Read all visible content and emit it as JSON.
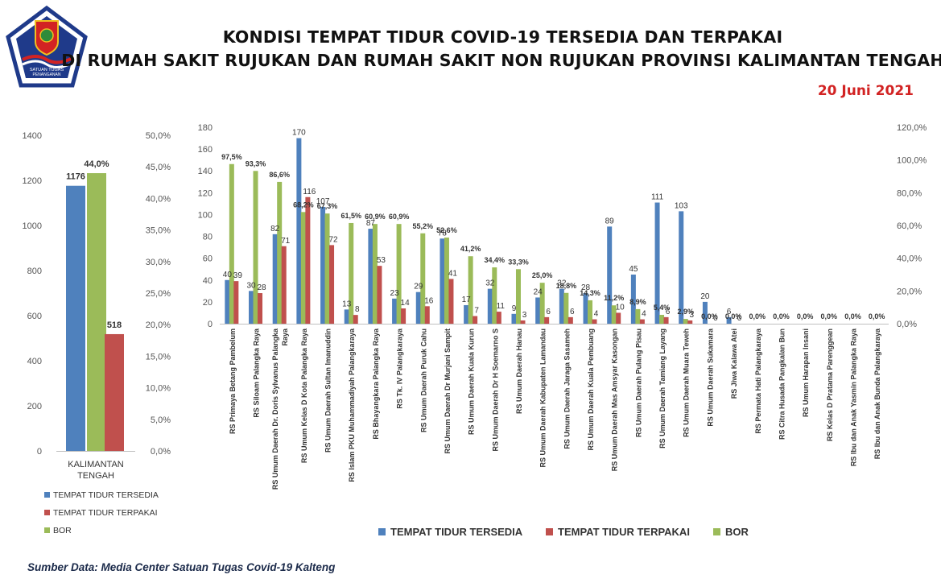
{
  "header": {
    "title_line1": "KONDISI TEMPAT TIDUR COVID-19 TERSEDIA DAN TERPAKAI",
    "title_line2": "DI RUMAH SAKIT RUJUKAN DAN RUMAH SAKIT NON RUJUKAN PROVINSI KALIMANTAN TENGAH",
    "date": "20 Juni 2021"
  },
  "logo": {
    "text_line1": "SATUAN TUGAS",
    "text_line2": "PENANGANAN",
    "text_line3": "COVID-19",
    "colors": {
      "navy": "#1f3a8a",
      "red": "#d22323"
    }
  },
  "footer": {
    "source": "Sumber Data: Media Center Satuan Tugas Covid-19 Kalteng"
  },
  "colors": {
    "tersedia": "#4f81bd",
    "terpakai": "#c0504d",
    "bor": "#9bbb59"
  },
  "chart_data": [
    {
      "type": "bar",
      "categories": [
        "KALIMANTAN TENGAH"
      ],
      "series": [
        {
          "name": "TEMPAT TIDUR TERSEDIA",
          "values": [
            1176
          ],
          "labels": [
            "1176"
          ],
          "axis": "left"
        },
        {
          "name": "BOR",
          "values": [
            44.0
          ],
          "labels": [
            "44,0%"
          ],
          "axis": "right"
        },
        {
          "name": "TEMPAT TIDUR TERPAKAI",
          "values": [
            518
          ],
          "labels": [
            "518"
          ],
          "axis": "left"
        }
      ],
      "y_left": {
        "min": 0,
        "max": 1400,
        "ticks": [
          "0",
          "200",
          "400",
          "600",
          "800",
          "1000",
          "1200",
          "1400"
        ]
      },
      "y_right": {
        "min": 0,
        "max": 50,
        "ticks": [
          "0,0%",
          "5,0%",
          "10,0%",
          "15,0%",
          "20,0%",
          "25,0%",
          "30,0%",
          "35,0%",
          "40,0%",
          "45,0%",
          "50,0%"
        ]
      },
      "legend_position": "bottom"
    },
    {
      "type": "bar",
      "categories": [
        "RS Primaya Betang Pambelum",
        "RS Siloam Palangka Raya",
        "RS Umum Daerah Dr. Doris Sylvanus Palangka Raya",
        "RS Umum Kelas D Kota Palangka Raya",
        "RS Umum Daerah Sultan Imanuddin",
        "RS Islam PKU Muhammadiyah Palangkaraya",
        "RS Bhayangkara Palangka Raya",
        "RS Tk. IV Palangkaraya",
        "RS Umum Daerah Puruk Cahu",
        "RS Umum Daerah Dr Murjani Sampit",
        "RS Umum Daerah Kuala Kurun",
        "RS Umum Daerah Dr H Soemarno S",
        "RS Umum Daerah Hanau",
        "RS Umum Daerah Kabupaten Lamandau",
        "RS Umum Daerah Jaraga Sasameh",
        "RS Umum Daerah Kuala Pembuang",
        "RS Umum Daerah  Mas Amsyar Kasongan",
        "RS Umum Daerah Pulang Pisau",
        "RS Umum Daerah Tamiang Layang",
        "RS Umum Daerah Muara Teweh",
        "RS Umum Daerah Sukamara",
        "RS Jiwa Kalawa Atei",
        "RS Permata Hati Palangkaraya",
        "RS Citra Husada Pangkalan Bun",
        "RS Umum Harapan Insani",
        "RS Kelas D Pratama Parenggean",
        "RS Ibu dan Anak Yasmin Palangka Raya",
        "RS Ibu dan Anak Bunda Palangkaraya"
      ],
      "series": [
        {
          "name": "TEMPAT TIDUR TERSEDIA",
          "axis": "left",
          "values": [
            40,
            30,
            82,
            170,
            107,
            13,
            87,
            23,
            29,
            78,
            17,
            32,
            9,
            24,
            32,
            28,
            89,
            45,
            111,
            103,
            20,
            6,
            0,
            0,
            0,
            0,
            0,
            0
          ],
          "labels": [
            "40",
            "30",
            "82",
            "170",
            "107",
            "13",
            "87",
            "23",
            "29",
            "78",
            "17",
            "32",
            "9",
            "24",
            "32",
            "28",
            "89",
            "45",
            "111",
            "103",
            "20",
            "6",
            "",
            "",
            "",
            "",
            "",
            ""
          ]
        },
        {
          "name": "TEMPAT TIDUR TERPAKAI",
          "axis": "left",
          "values": [
            39,
            28,
            71,
            116,
            72,
            8,
            53,
            14,
            16,
            41,
            7,
            11,
            3,
            6,
            6,
            4,
            10,
            4,
            6,
            3,
            0,
            0,
            0,
            0,
            0,
            0,
            0,
            0
          ],
          "labels": [
            "39",
            "28",
            "71",
            "116",
            "72",
            "8",
            "53",
            "14",
            "16",
            "41",
            "7",
            "11",
            "3",
            "6",
            "6",
            "4",
            "10",
            "4",
            "6",
            "3",
            "0",
            "0",
            "",
            "",
            "",
            "",
            "",
            ""
          ]
        },
        {
          "name": "BOR",
          "axis": "right",
          "values": [
            97.5,
            93.3,
            86.6,
            68.2,
            67.3,
            61.5,
            60.9,
            60.9,
            55.2,
            52.6,
            41.2,
            34.4,
            33.3,
            25.0,
            18.8,
            14.3,
            11.2,
            8.9,
            5.4,
            2.9,
            0.0,
            0.0,
            0.0,
            0.0,
            0.0,
            0.0,
            0.0,
            0.0
          ],
          "labels": [
            "97,5%",
            "93,3%",
            "86,6%",
            "68,2%",
            "67,3%",
            "61,5%",
            "60,9%",
            "60,9%",
            "55,2%",
            "52,6%",
            "41,2%",
            "34,4%",
            "33,3%",
            "25,0%",
            "18,8%",
            "14,3%",
            "11,2%",
            "8,9%",
            "5,4%",
            "2,9%",
            "0,0%",
            "0,0%",
            "0,0%",
            "0,0%",
            "0,0%",
            "0,0%",
            "0,0%",
            "0,0%"
          ]
        }
      ],
      "y_left": {
        "min": 0,
        "max": 180,
        "ticks": [
          "0",
          "20",
          "40",
          "60",
          "80",
          "100",
          "120",
          "140",
          "160",
          "180"
        ]
      },
      "y_right": {
        "min": 0,
        "max": 120,
        "ticks": [
          "0,0%",
          "20,0%",
          "40,0%",
          "60,0%",
          "80,0%",
          "100,0%",
          "120,0%"
        ]
      },
      "legend_position": "bottom"
    }
  ]
}
